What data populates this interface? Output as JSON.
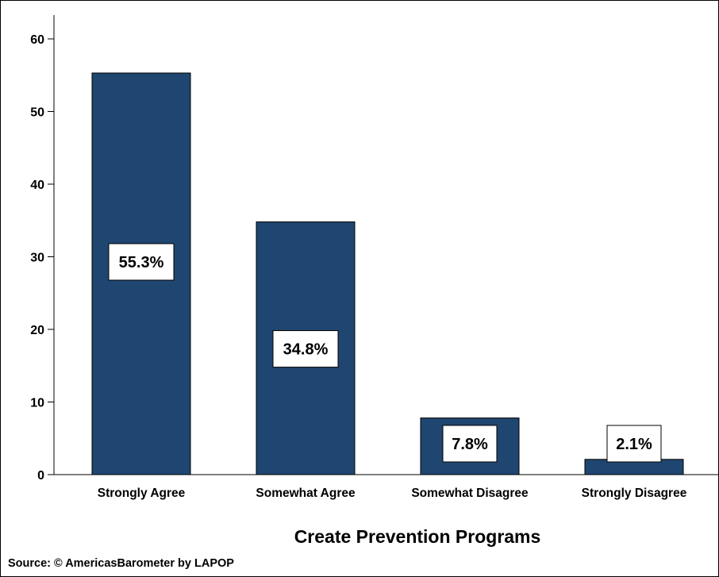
{
  "chart_data": {
    "type": "bar",
    "categories": [
      "Strongly Agree",
      "Somewhat Agree",
      "Somewhat Disagree",
      "Strongly Disagree"
    ],
    "values": [
      55.3,
      34.8,
      7.8,
      2.1
    ],
    "data_labels": [
      "55.3%",
      "34.8%",
      "7.8%",
      "2.1%"
    ],
    "title": "Create Prevention Programs",
    "xlabel": "",
    "ylabel": "",
    "ylim": [
      0,
      60
    ],
    "yticks": [
      0,
      10,
      20,
      30,
      40,
      50,
      60
    ],
    "grid": false,
    "bar_color": "#1f4670",
    "source": "Source: © AmericasBarometer by LAPOP"
  }
}
